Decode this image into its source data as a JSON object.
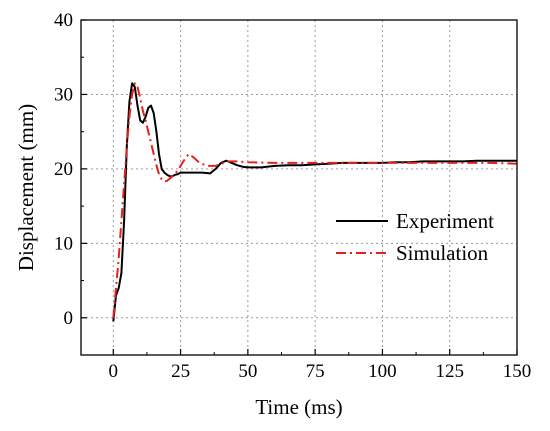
{
  "chart_data": {
    "type": "line",
    "xlabel": "Time (ms)",
    "ylabel": "Displacement (mm)",
    "xlim": [
      -12,
      150
    ],
    "ylim": [
      -5,
      40
    ],
    "xticks": [
      0,
      25,
      50,
      75,
      100,
      125,
      150
    ],
    "yticks": [
      0,
      10,
      20,
      30,
      40
    ],
    "grid": true,
    "legend_position": "center-right",
    "series": [
      {
        "name": "Experiment",
        "color": "#000000",
        "style": "solid",
        "x": [
          0,
          1,
          2,
          3,
          4,
          5,
          6,
          7,
          8,
          9,
          10,
          11,
          12,
          13,
          14,
          15,
          16,
          17,
          18,
          19,
          20,
          21,
          22,
          23,
          24,
          25,
          27,
          30,
          33,
          36,
          38,
          40,
          42,
          44,
          46,
          48,
          50,
          55,
          60,
          65,
          70,
          75,
          80,
          85,
          90,
          95,
          100,
          105,
          110,
          115,
          120,
          125,
          130,
          135,
          140,
          145,
          150
        ],
        "y": [
          -0.5,
          3,
          4,
          6,
          13,
          23,
          29,
          31.5,
          31,
          28.5,
          26.5,
          26.2,
          27,
          28.2,
          28.5,
          27.5,
          25,
          22,
          20,
          19.5,
          19.2,
          19,
          19,
          19.2,
          19.3,
          19.5,
          19.5,
          19.5,
          19.5,
          19.4,
          20,
          20.8,
          21.1,
          20.8,
          20.5,
          20.3,
          20.2,
          20.2,
          20.4,
          20.5,
          20.5,
          20.6,
          20.7,
          20.8,
          20.8,
          20.8,
          20.8,
          20.9,
          20.9,
          21,
          21,
          21,
          21,
          21.1,
          21.1,
          21.1,
          21.1
        ]
      },
      {
        "name": "Simulation",
        "color": "#e8201c",
        "style": "dash-dot",
        "x": [
          0,
          1,
          2,
          3,
          4,
          5,
          6,
          7,
          8,
          9,
          10,
          11,
          12,
          13,
          14,
          15,
          16,
          17,
          18,
          19,
          20,
          22,
          24,
          26,
          28,
          30,
          32,
          35,
          38,
          40,
          43,
          46,
          50,
          60,
          70,
          80,
          90,
          100,
          110,
          120,
          130,
          140,
          150
        ],
        "y": [
          0,
          4,
          8,
          13,
          18,
          23,
          27,
          30,
          31.5,
          31,
          29.5,
          27.8,
          26.5,
          25,
          23.5,
          22,
          20.5,
          19.3,
          18.6,
          18.3,
          18.4,
          19,
          19.8,
          21,
          22,
          21.5,
          20.8,
          20.4,
          20.4,
          20.7,
          21,
          21,
          20.9,
          20.8,
          20.8,
          20.8,
          20.8,
          20.8,
          20.8,
          20.8,
          20.8,
          20.8,
          20.7
        ]
      }
    ]
  }
}
